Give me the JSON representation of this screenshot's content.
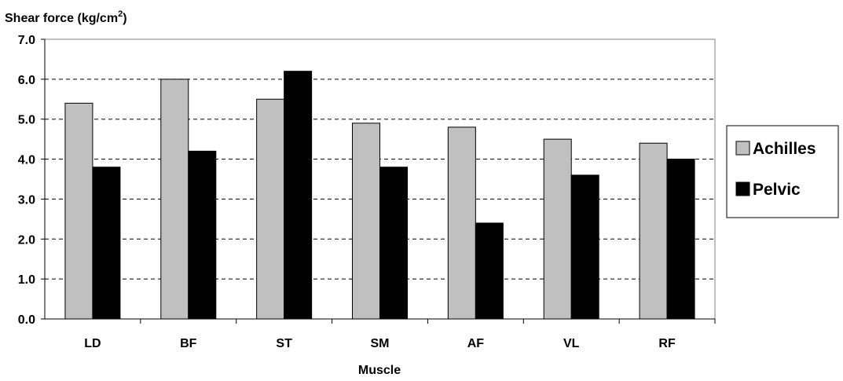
{
  "chart_data": {
    "type": "bar",
    "ylabel": "Shear force (kg/cm",
    "ylabel_sup": "2",
    "ylabel_close": ")",
    "xlabel": "Muscle",
    "categories": [
      "LD",
      "BF",
      "ST",
      "SM",
      "AF",
      "VL",
      "RF"
    ],
    "series": [
      {
        "name": "Achilles",
        "color": "#c0c0c0",
        "values": [
          5.4,
          6.0,
          5.5,
          4.9,
          4.8,
          4.5,
          4.4
        ]
      },
      {
        "name": "Pelvic",
        "color": "#000000",
        "values": [
          3.8,
          4.2,
          6.2,
          3.8,
          2.4,
          3.6,
          4.0
        ]
      }
    ],
    "ylim": [
      0,
      7
    ],
    "ytick_step": 1,
    "ytick_labels": [
      "0.0",
      "1.0",
      "2.0",
      "3.0",
      "4.0",
      "5.0",
      "6.0",
      "7.0"
    ],
    "grid": "horizontal dashed",
    "legend_position": "right"
  }
}
